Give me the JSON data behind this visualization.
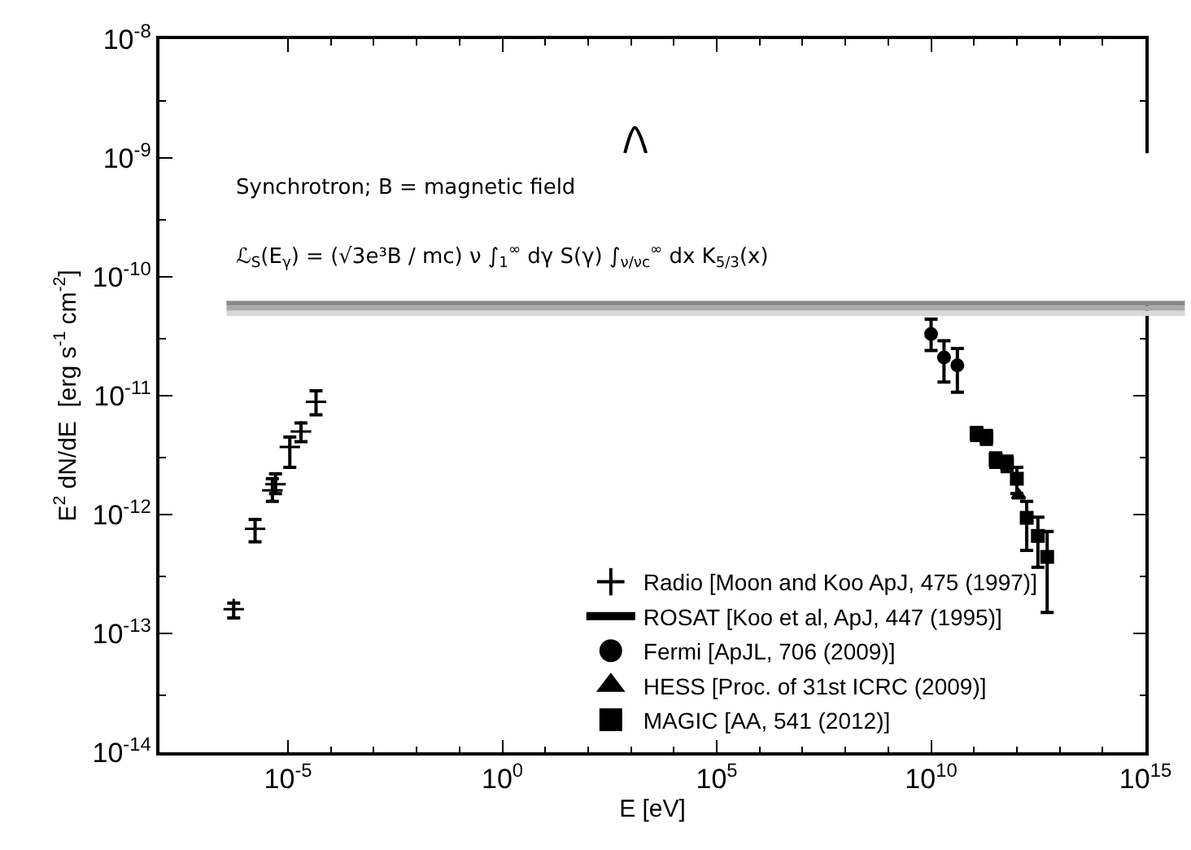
{
  "chart_data": {
    "type": "scatter",
    "xlabel": "E [eV]",
    "ylabel": "E$^{2}$ dN/dE  [erg s$^{-1}$ cm$^{-2}$]",
    "log": "xy",
    "xlim": [
      1e-08,
      1000000000000000.0
    ],
    "ylim": [
      1e-14,
      1e-08
    ],
    "xticks": [
      {
        "value": 1e-05,
        "label": "10$^{-5}$"
      },
      {
        "value": 1,
        "label": "10$^{0}$"
      },
      {
        "value": 100000.0,
        "label": "10$^{5}$"
      },
      {
        "value": 10000000000.0,
        "label": "10$^{10}$"
      },
      {
        "value": 1000000000000000.0,
        "label": "10$^{15}$"
      }
    ],
    "yticks": [
      {
        "value": 1e-14,
        "label": "10$^{-14}$"
      },
      {
        "value": 1e-13,
        "label": "10$^{-13}$"
      },
      {
        "value": 1e-12,
        "label": "10$^{-12}$"
      },
      {
        "value": 1e-11,
        "label": "10$^{-11}$"
      },
      {
        "value": 1e-10,
        "label": "10$^{-10}$"
      },
      {
        "value": 1e-09,
        "label": "10$^{-9}$"
      },
      {
        "value": 1e-08,
        "label": "10$^{-8}$"
      }
    ],
    "legend": "bottom right",
    "series": [
      {
        "name": "Radio [Moon and Koo ApJ, 475 (1997)]",
        "type": "scatter",
        "marker": "cross",
        "color": "#000000",
        "x": [
          5.4e-07,
          1.7e-06,
          4.3e-06,
          5.1e-06,
          1.1e-05,
          2e-05,
          4.5e-05
        ],
        "values": [
          1.6e-13,
          7.6e-13,
          1.6e-12,
          1.8e-12,
          3.7e-12,
          5e-12,
          8.9e-12
        ],
        "errors": [
          [
            1.35e-13,
            1.8e-13
          ],
          [
            5.9e-13,
            9.1e-13
          ],
          [
            1.29e-12,
            2e-12
          ],
          [
            1.5e-12,
            2.2e-12
          ],
          [
            2.5e-12,
            4.5e-12
          ],
          [
            4.1e-12,
            5.9e-12
          ],
          [
            6.9e-12,
            1.1e-11
          ]
        ]
      },
      {
        "name": "ROSAT [Koo et al, ApJ, 447 (1995)]",
        "type": "line",
        "marker": "none",
        "color": "#000000",
        "x": [
          720,
          1230,
          2240
        ],
        "values": [
          1.1e-09,
          1.8e-09,
          1.1e-09
        ]
      },
      {
        "name": "Fermi [ApJL, 706 (2009)]",
        "type": "scatter",
        "marker": "circle",
        "color": "#000000",
        "x": [
          10000000000.0,
          20000000000.0,
          41000000000.0
        ],
        "values": [
          3.3e-11,
          2.1e-11,
          1.8e-11
        ],
        "errors": [
          [
            2.4e-11,
            4.4e-11
          ],
          [
            1.3e-11,
            2.9e-11
          ],
          [
            1.07e-11,
            2.5e-11
          ]
        ]
      },
      {
        "name": "HESS [Proc. of 31st ICRC (2009)]",
        "type": "scatter",
        "marker": "triangle",
        "color": "#000000",
        "x": [
          1100000000000.0
        ],
        "values": [
          1.45e-12
        ]
      },
      {
        "name": "MAGIC [AA, 541 (2012)]",
        "type": "scatter",
        "marker": "square",
        "color": "#000000",
        "x": [
          115000000000.0,
          195000000000.0,
          320000000000.0,
          590000000000.0,
          1000000000000.0,
          1700000000000.0,
          3100000000000.0,
          5100000000000.0
        ],
        "values": [
          4.8e-12,
          4.5e-12,
          2.9e-12,
          2.7e-12,
          2e-12,
          9.4e-13,
          6.6e-13,
          4.4e-13
        ],
        "errors": [
          6e-13,
          6e-13,
          4e-13,
          4e-13,
          5e-13,
          [
            5e-13,
            1.29e-12
          ],
          [
            3.6e-13,
            9.5e-13
          ],
          [
            1.5e-13,
            7.2e-13
          ]
        ]
      }
    ],
    "annotations": [
      "Synchrotron; B = magnetic field",
      "ℒ$_{S}$(E$_{γ}$) = (√3e³B / mc) ν ∫$_{1}$$^{∞}$ dγ S(γ) ∫$_{ν/νc}$$^{∞}$ dx K$_{5/3}$(x)"
    ]
  }
}
